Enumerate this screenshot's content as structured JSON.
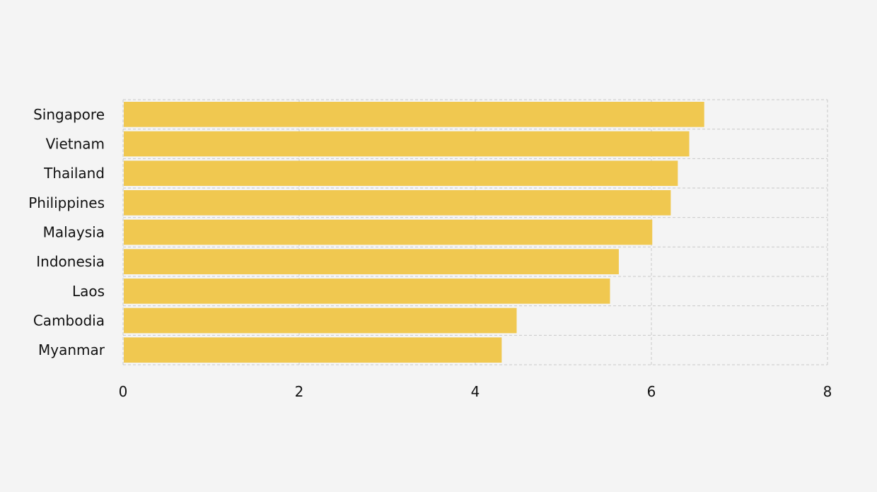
{
  "chart_data": {
    "type": "bar",
    "orientation": "horizontal",
    "categories": [
      "Singapore",
      "Vietnam",
      "Thailand",
      "Philippines",
      "Malaysia",
      "Indonesia",
      "Laos",
      "Cambodia",
      "Myanmar"
    ],
    "values": [
      6.6,
      6.43,
      6.3,
      6.22,
      6.01,
      5.63,
      5.53,
      4.47,
      4.3
    ],
    "xlim": [
      0,
      8
    ],
    "xticks": [
      "0",
      "2",
      "4",
      "6",
      "8"
    ],
    "grid": true,
    "bar_color": "#f0c850",
    "grid_color": "#c8c8c8",
    "title": "",
    "xlabel": "",
    "ylabel": ""
  }
}
